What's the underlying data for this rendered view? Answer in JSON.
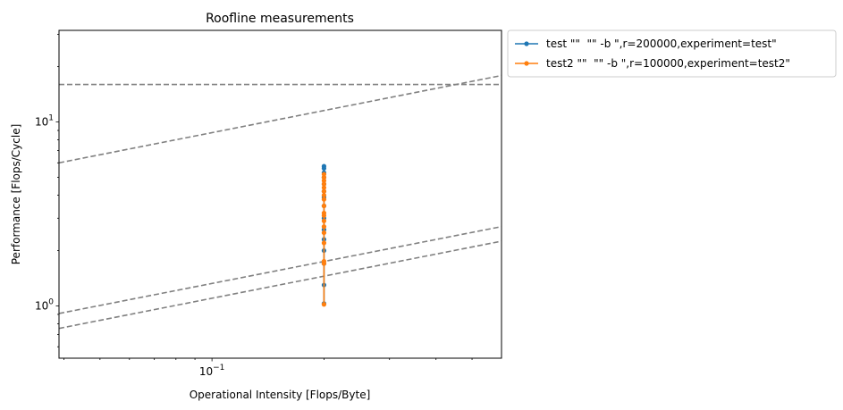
{
  "chart_data": {
    "type": "line",
    "title": "Roofline measurements",
    "xlabel": "Operational Intensity [Flops/Byte]",
    "ylabel": "Performance [Flops/Cycle]",
    "xscale": "log",
    "yscale": "log",
    "xlim": [
      0.0388,
      0.6
    ],
    "ylim": [
      0.52,
      31.5
    ],
    "x_tick_labels": [
      "10^-1"
    ],
    "y_tick_labels": [
      "10^0",
      "10^1"
    ],
    "x_ticks": [
      0.1
    ],
    "y_ticks": [
      1,
      10
    ],
    "grid": false,
    "legend_position": "outside upper right",
    "roofline_lines": [
      {
        "style": "dashed",
        "color": "#808080",
        "points": [
          [
            0.0388,
            16.0
          ],
          [
            0.6,
            16.0
          ]
        ]
      },
      {
        "style": "dashed",
        "color": "#808080",
        "points": [
          [
            0.0388,
            6.0
          ],
          [
            0.6,
            17.9
          ]
        ]
      },
      {
        "style": "dashed",
        "color": "#808080",
        "points": [
          [
            0.0388,
            0.91
          ],
          [
            0.6,
            2.7
          ]
        ]
      },
      {
        "style": "dashed",
        "color": "#808080",
        "points": [
          [
            0.0388,
            0.755
          ],
          [
            0.6,
            2.25
          ]
        ]
      }
    ],
    "series": [
      {
        "name": "test \"\"  \"\" -b \",r=200000,experiment=test\"",
        "color": "#1f77b4",
        "x": [
          0.2,
          0.2,
          0.2,
          0.2,
          0.2,
          0.2,
          0.2,
          0.2,
          0.2,
          0.2,
          0.2,
          0.2,
          0.2,
          0.2,
          0.2
        ],
        "y": [
          5.75,
          5.6,
          5.3,
          5.0,
          4.6,
          4.2,
          3.9,
          3.5,
          3.0,
          2.6,
          2.3,
          2.0,
          1.7,
          1.3,
          1.03
        ]
      },
      {
        "name": "test2 \"\"  \"\" -b \",r=100000,experiment=test2\"",
        "color": "#ff7f0e",
        "x": [
          0.2,
          0.2,
          0.2,
          0.2,
          0.2,
          0.2,
          0.2,
          0.2,
          0.2,
          0.2,
          0.2,
          0.2,
          0.2,
          0.2,
          0.2,
          0.2,
          0.2,
          0.2
        ],
        "y": [
          5.2,
          5.0,
          4.8,
          4.6,
          4.4,
          4.2,
          4.0,
          3.8,
          3.5,
          3.2,
          3.1,
          2.9,
          2.7,
          2.5,
          2.2,
          1.75,
          1.7,
          1.02
        ]
      }
    ]
  }
}
